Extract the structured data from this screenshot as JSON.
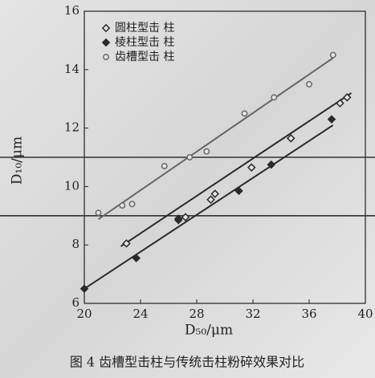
{
  "chart_data": {
    "type": "scatter",
    "caption": "图 4 齿槽型击柱与传统击柱粉碎效果对比",
    "x_label": "D₅₀/μm",
    "y_label": "D₁₀/μm",
    "xlim": [
      20,
      40
    ],
    "xticks": [
      20,
      24,
      28,
      32,
      36,
      40
    ],
    "ylim": [
      6,
      16
    ],
    "yticks": [
      6,
      8,
      10,
      12,
      14,
      16
    ],
    "hlines": [
      9,
      11
    ],
    "legend": "upper left",
    "series": [
      {
        "name": "圆柱型击 柱",
        "color": "#2a2a2a",
        "marker": "diamond-open",
        "x": [
          23.0,
          26.7,
          27.2,
          29.0,
          29.3,
          31.9,
          34.7,
          38.2,
          38.7
        ],
        "values": [
          8.05,
          8.9,
          8.95,
          9.55,
          9.75,
          10.65,
          11.65,
          12.85,
          13.05
        ],
        "fit_x": [
          22.6,
          39.0
        ],
        "fit_y": [
          7.95,
          13.2
        ]
      },
      {
        "name": "棱柱型击 柱",
        "color": "#2a2a2a",
        "marker": "diamond-filled",
        "x": [
          20.0,
          23.7,
          26.7,
          31.0,
          33.3,
          37.6
        ],
        "values": [
          6.5,
          7.55,
          8.85,
          9.85,
          10.75,
          12.3
        ],
        "fit_x": [
          20.0,
          37.7
        ],
        "fit_y": [
          6.5,
          12.1
        ]
      },
      {
        "name": "齿槽型击 柱",
        "color": "#666666",
        "marker": "circle-open",
        "x": [
          21.0,
          22.7,
          23.4,
          25.7,
          27.5,
          28.7,
          31.4,
          33.5,
          36.0,
          37.7
        ],
        "values": [
          9.1,
          9.35,
          9.4,
          10.7,
          11.0,
          11.2,
          12.5,
          13.05,
          13.5,
          14.5
        ],
        "fit_x": [
          21.0,
          37.7
        ],
        "fit_y": [
          8.88,
          14.4
        ]
      }
    ]
  }
}
